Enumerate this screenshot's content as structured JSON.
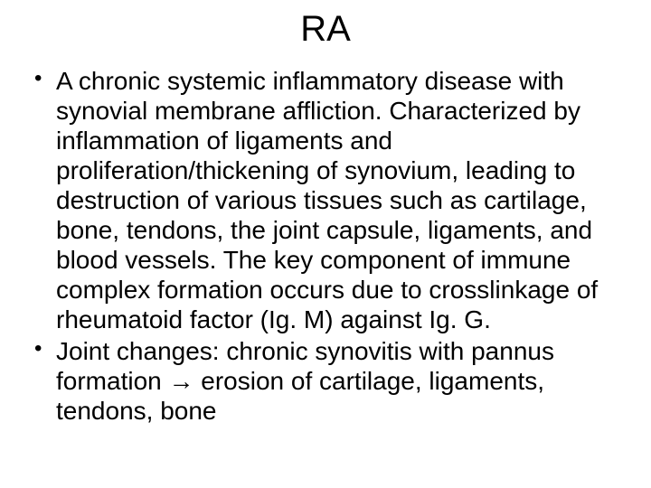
{
  "slide": {
    "title": "RA",
    "bullets": [
      "A chronic systemic inflammatory disease with synovial membrane affliction.  Characterized by inflammation of ligaments and proliferation/thickening of synovium, leading to destruction of various tissues such as cartilage, bone, tendons, the joint capsule, ligaments, and blood vessels.  The key component of immune complex formation occurs due to crosslinkage of rheumatoid factor (Ig. M) against Ig. G.",
      "Joint changes: chronic synovitis with pannus formation → erosion of cartilage, ligaments, tendons, bone"
    ]
  },
  "style": {
    "background_color": "#ffffff",
    "text_color": "#000000",
    "title_fontsize": 40,
    "body_fontsize": 28,
    "font_family": "Arial",
    "bullet_char": "•"
  }
}
